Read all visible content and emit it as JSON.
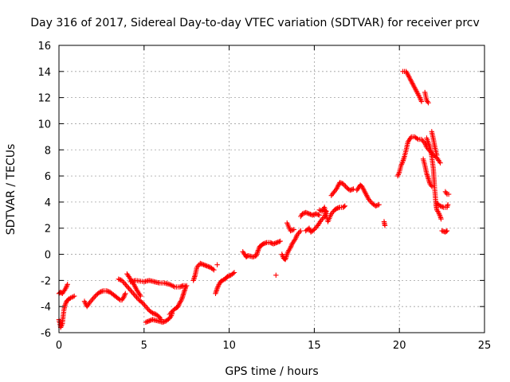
{
  "chart_data": {
    "type": "scatter",
    "title": "Day 316 of 2017, Sidereal Day-to-day VTEC variation (SDTVAR) for receiver prcv",
    "xlabel": "GPS time / hours",
    "ylabel": "SDTVAR / TECUs",
    "xlim": [
      0,
      25
    ],
    "ylim": [
      -6,
      16
    ],
    "x_ticks": [
      0,
      5,
      10,
      15,
      20,
      25
    ],
    "y_ticks": [
      -6,
      -4,
      -2,
      0,
      2,
      4,
      6,
      8,
      10,
      12,
      14,
      16
    ],
    "grid": true,
    "marker": "+",
    "color": "#ff0000",
    "series": [
      {
        "name": "SDTVAR",
        "segments": [
          [
            [
              0.0,
              -5.0
            ],
            [
              0.1,
              -5.6
            ],
            [
              0.2,
              -5.3
            ],
            [
              0.25,
              -4.7
            ],
            [
              0.3,
              -4.2
            ],
            [
              0.35,
              -3.9
            ],
            [
              0.45,
              -3.6
            ],
            [
              0.6,
              -3.4
            ],
            [
              0.75,
              -3.3
            ],
            [
              0.9,
              -3.2
            ]
          ],
          [
            [
              0.0,
              -3.0
            ],
            [
              0.1,
              -2.9
            ],
            [
              0.2,
              -3.0
            ],
            [
              0.3,
              -2.8
            ],
            [
              0.4,
              -2.6
            ],
            [
              0.5,
              -2.3
            ]
          ],
          [
            [
              1.5,
              -3.6
            ],
            [
              1.65,
              -4.0
            ],
            [
              1.8,
              -3.7
            ],
            [
              2.0,
              -3.4
            ],
            [
              2.2,
              -3.1
            ],
            [
              2.4,
              -2.9
            ],
            [
              2.6,
              -2.8
            ],
            [
              2.8,
              -2.8
            ],
            [
              3.0,
              -2.9
            ],
            [
              3.2,
              -3.1
            ],
            [
              3.4,
              -3.3
            ],
            [
              3.6,
              -3.5
            ],
            [
              3.7,
              -3.5
            ],
            [
              3.8,
              -3.3
            ],
            [
              3.9,
              -3.0
            ]
          ],
          [
            [
              3.5,
              -1.9
            ],
            [
              3.7,
              -2.0
            ],
            [
              3.9,
              -2.3
            ],
            [
              4.1,
              -2.6
            ],
            [
              4.3,
              -2.9
            ],
            [
              4.5,
              -3.2
            ],
            [
              4.7,
              -3.5
            ],
            [
              4.9,
              -3.7
            ],
            [
              5.1,
              -4.0
            ],
            [
              5.3,
              -4.3
            ],
            [
              5.5,
              -4.5
            ],
            [
              5.7,
              -4.6
            ],
            [
              5.9,
              -4.8
            ],
            [
              6.0,
              -5.0
            ]
          ],
          [
            [
              4.0,
              -1.5
            ],
            [
              4.2,
              -1.9
            ],
            [
              4.4,
              -2.3
            ],
            [
              4.6,
              -2.8
            ],
            [
              4.8,
              -3.2
            ]
          ],
          [
            [
              4.2,
              -2.1
            ],
            [
              4.5,
              -2.0
            ],
            [
              5.0,
              -2.1
            ],
            [
              5.3,
              -2.0
            ],
            [
              5.6,
              -2.1
            ],
            [
              5.9,
              -2.2
            ],
            [
              6.2,
              -2.2
            ],
            [
              6.5,
              -2.3
            ],
            [
              6.8,
              -2.5
            ],
            [
              7.1,
              -2.5
            ],
            [
              7.3,
              -2.4
            ],
            [
              7.5,
              -2.4
            ]
          ],
          [
            [
              5.1,
              -5.2
            ],
            [
              5.3,
              -5.1
            ],
            [
              5.5,
              -5.0
            ],
            [
              5.8,
              -5.1
            ],
            [
              6.1,
              -5.2
            ],
            [
              6.3,
              -5.1
            ],
            [
              6.5,
              -4.9
            ],
            [
              6.6,
              -4.7
            ],
            [
              6.65,
              -4.5
            ]
          ],
          [
            [
              6.5,
              -4.6
            ],
            [
              6.7,
              -4.3
            ],
            [
              6.9,
              -4.1
            ],
            [
              7.0,
              -4.0
            ],
            [
              7.1,
              -3.7
            ],
            [
              7.2,
              -3.5
            ],
            [
              7.3,
              -3.1
            ],
            [
              7.4,
              -2.7
            ],
            [
              7.45,
              -2.5
            ]
          ],
          [
            [
              7.9,
              -2.0
            ],
            [
              8.0,
              -1.6
            ],
            [
              8.1,
              -1.0
            ],
            [
              8.3,
              -0.7
            ],
            [
              8.5,
              -0.8
            ],
            [
              8.7,
              -0.9
            ],
            [
              8.9,
              -1.0
            ],
            [
              9.1,
              -1.2
            ]
          ],
          [
            [
              9.3,
              -0.8
            ]
          ],
          [
            [
              9.2,
              -3.0
            ],
            [
              9.3,
              -2.6
            ],
            [
              9.4,
              -2.3
            ],
            [
              9.5,
              -2.1
            ],
            [
              9.6,
              -2.0
            ],
            [
              9.75,
              -1.9
            ],
            [
              9.9,
              -1.7
            ],
            [
              10.1,
              -1.6
            ],
            [
              10.3,
              -1.4
            ]
          ],
          [
            [
              10.8,
              0.2
            ],
            [
              10.9,
              0.0
            ],
            [
              11.0,
              -0.2
            ],
            [
              11.1,
              -0.1
            ],
            [
              11.4,
              -0.2
            ],
            [
              11.6,
              -0.1
            ],
            [
              11.7,
              0.3
            ],
            [
              11.8,
              0.6
            ],
            [
              11.9,
              0.7
            ],
            [
              12.0,
              0.8
            ],
            [
              12.2,
              0.9
            ],
            [
              12.4,
              0.9
            ],
            [
              12.6,
              0.8
            ],
            [
              12.8,
              0.9
            ],
            [
              13.0,
              1.0
            ]
          ],
          [
            [
              12.75,
              -1.6
            ]
          ],
          [
            [
              13.1,
              0.0
            ],
            [
              13.2,
              -0.3
            ],
            [
              13.3,
              -0.4
            ],
            [
              13.4,
              0.0
            ],
            [
              13.5,
              0.3
            ],
            [
              13.6,
              0.5
            ],
            [
              13.7,
              0.8
            ],
            [
              13.8,
              1.0
            ],
            [
              13.9,
              1.2
            ],
            [
              14.0,
              1.5
            ],
            [
              14.2,
              1.8
            ]
          ],
          [
            [
              13.4,
              2.4
            ],
            [
              13.6,
              1.8
            ],
            [
              13.8,
              1.9
            ]
          ],
          [
            [
              14.2,
              2.9
            ],
            [
              14.3,
              3.1
            ],
            [
              14.5,
              3.2
            ],
            [
              14.7,
              3.1
            ],
            [
              14.9,
              3.0
            ],
            [
              15.1,
              3.1
            ],
            [
              15.3,
              3.0
            ]
          ],
          [
            [
              14.5,
              1.8
            ],
            [
              14.7,
              2.0
            ],
            [
              14.8,
              1.7
            ],
            [
              15.0,
              1.9
            ],
            [
              15.2,
              2.2
            ],
            [
              15.4,
              2.6
            ],
            [
              15.6,
              2.9
            ],
            [
              15.7,
              3.3
            ]
          ],
          [
            [
              15.3,
              3.4
            ],
            [
              15.45,
              3.3
            ],
            [
              15.6,
              3.6
            ],
            [
              15.8,
              2.5
            ],
            [
              16.0,
              3.1
            ],
            [
              16.2,
              3.4
            ],
            [
              16.3,
              3.5
            ],
            [
              16.5,
              3.6
            ],
            [
              16.7,
              3.6
            ],
            [
              16.8,
              3.7
            ]
          ],
          [
            [
              16.0,
              4.5
            ],
            [
              16.3,
              5.0
            ],
            [
              16.5,
              5.5
            ],
            [
              16.7,
              5.4
            ],
            [
              16.9,
              5.1
            ],
            [
              17.1,
              4.9
            ],
            [
              17.3,
              5.0
            ]
          ],
          [
            [
              17.5,
              4.9
            ],
            [
              17.6,
              5.1
            ],
            [
              17.7,
              5.3
            ],
            [
              17.8,
              5.2
            ],
            [
              18.0,
              4.7
            ],
            [
              18.2,
              4.2
            ],
            [
              18.4,
              3.9
            ],
            [
              18.6,
              3.7
            ],
            [
              18.8,
              3.8
            ]
          ],
          [
            [
              19.1,
              2.5
            ],
            [
              19.15,
              2.2
            ]
          ],
          [
            [
              19.9,
              6.0
            ],
            [
              20.0,
              6.3
            ],
            [
              20.1,
              6.8
            ],
            [
              20.2,
              7.1
            ],
            [
              20.3,
              7.5
            ],
            [
              20.4,
              8.0
            ],
            [
              20.5,
              8.6
            ],
            [
              20.7,
              9.0
            ],
            [
              20.9,
              9.0
            ],
            [
              21.1,
              8.8
            ],
            [
              21.3,
              8.8
            ],
            [
              21.5,
              8.5
            ],
            [
              21.6,
              8.2
            ],
            [
              21.8,
              7.9
            ],
            [
              22.0,
              7.6
            ],
            [
              22.2,
              7.4
            ],
            [
              22.4,
              7.0
            ]
          ],
          [
            [
              20.2,
              14.0
            ],
            [
              20.4,
              14.0
            ],
            [
              20.6,
              13.5
            ],
            [
              20.8,
              13.0
            ],
            [
              21.0,
              12.5
            ],
            [
              21.2,
              12.0
            ],
            [
              21.3,
              11.7
            ]
          ],
          [
            [
              21.5,
              12.4
            ],
            [
              21.6,
              11.8
            ],
            [
              21.7,
              11.6
            ]
          ],
          [
            [
              21.4,
              7.3
            ],
            [
              21.5,
              6.8
            ],
            [
              21.6,
              6.2
            ],
            [
              21.7,
              5.8
            ],
            [
              21.8,
              5.4
            ],
            [
              21.9,
              5.2
            ]
          ],
          [
            [
              21.6,
              8.9
            ],
            [
              21.8,
              8.2
            ],
            [
              21.9,
              7.5
            ],
            [
              22.0,
              6.5
            ],
            [
              22.05,
              5.4
            ],
            [
              22.1,
              4.6
            ],
            [
              22.15,
              3.8
            ],
            [
              22.2,
              3.4
            ],
            [
              22.3,
              3.2
            ],
            [
              22.4,
              2.9
            ],
            [
              22.45,
              2.7
            ]
          ],
          [
            [
              21.9,
              9.4
            ],
            [
              22.0,
              8.8
            ],
            [
              22.1,
              8.1
            ],
            [
              22.2,
              7.6
            ]
          ],
          [
            [
              22.2,
              3.9
            ],
            [
              22.4,
              3.7
            ],
            [
              22.6,
              3.6
            ],
            [
              22.8,
              3.6
            ],
            [
              22.85,
              3.8
            ]
          ],
          [
            [
              22.7,
              4.8
            ],
            [
              22.8,
              4.6
            ],
            [
              22.9,
              4.6
            ]
          ],
          [
            [
              22.5,
              1.8
            ],
            [
              22.7,
              1.7
            ],
            [
              22.8,
              1.8
            ]
          ]
        ]
      }
    ]
  }
}
